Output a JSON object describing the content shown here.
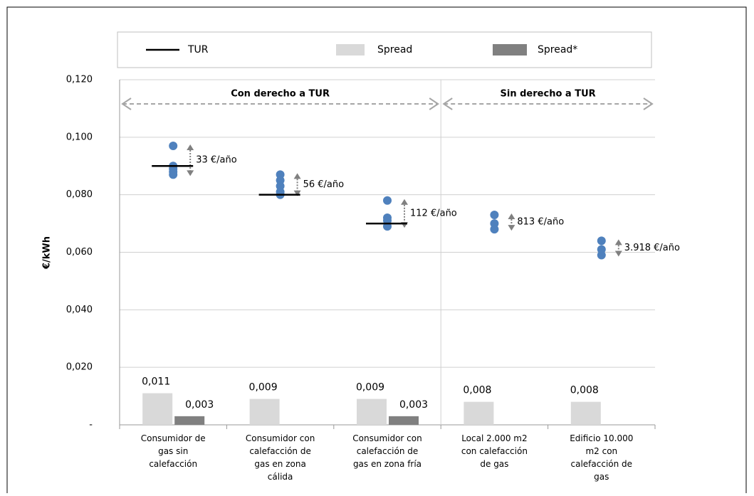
{
  "chart_data": {
    "type": "bar",
    "y_label": "€/kWh",
    "ylim": [
      0,
      0.12
    ],
    "yticks": [
      {
        "value": 0,
        "label": "-"
      },
      {
        "value": 0.02,
        "label": "0,020"
      },
      {
        "value": 0.04,
        "label": "0,040"
      },
      {
        "value": 0.06,
        "label": "0,060"
      },
      {
        "value": 0.08,
        "label": "0,080"
      },
      {
        "value": 0.1,
        "label": "0,100"
      },
      {
        "value": 0.12,
        "label": "0,120"
      }
    ],
    "grid": true,
    "categories": [
      "Consumidor de\ngas sin\ncalefacción",
      "Consumidor con\ncalefacción de\ngas en zona\ncálida",
      "Consumidor con\ncalefacción de\ngas en zona fría",
      "Local 2.000 m2\ncon calefacción\nde gas",
      "Edificio 10.000\nm2 con\ncalefacción de\ngas"
    ],
    "series": [
      {
        "name": "TUR",
        "color": "#000000",
        "values": [
          0.09,
          0.08,
          0.07,
          null,
          null
        ]
      },
      {
        "name": "Spread",
        "color": "#d9d9d9",
        "values": [
          0.011,
          0.009,
          0.009,
          0.008,
          0.008
        ],
        "value_labels": [
          "0,011",
          "0,009",
          "0,009",
          "0,008",
          "0,008"
        ]
      },
      {
        "name": "Spread*",
        "color": "#808080",
        "values": [
          0.003,
          null,
          0.003,
          null,
          null
        ],
        "value_labels": [
          "0,003",
          null,
          "0,003",
          null,
          null
        ]
      }
    ],
    "offers": {
      "color": "#4f81bd",
      "values": [
        [
          0.097,
          0.09,
          0.089,
          0.088,
          0.087
        ],
        [
          0.087,
          0.085,
          0.083,
          0.081,
          0.08
        ],
        [
          0.078,
          0.072,
          0.071,
          0.069
        ],
        [
          0.073,
          0.07,
          0.068
        ],
        [
          0.064,
          0.061,
          0.059
        ]
      ]
    },
    "annotations": [
      "33 €/año",
      "56  €/año",
      "112  €/año",
      "813  €/año",
      "3.918 €/año"
    ],
    "regions": [
      {
        "label": "Con derecho a TUR",
        "categories": 3
      },
      {
        "label": "Sin derecho a TUR",
        "categories": 2
      }
    ]
  }
}
